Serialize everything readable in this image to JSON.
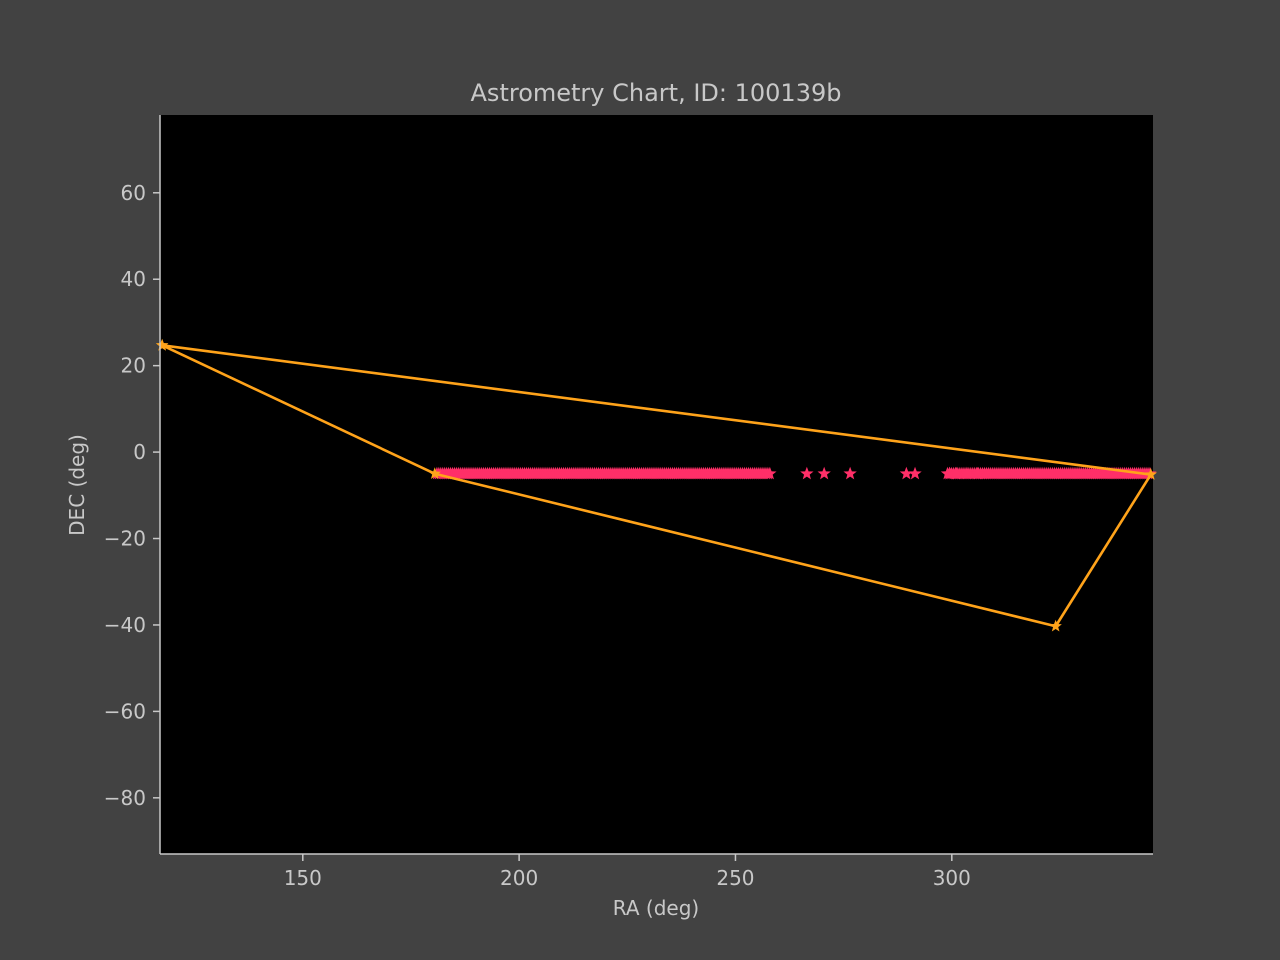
{
  "colors": {
    "background": "#424242",
    "plot_background": "#000000",
    "text": "#c8c8c8",
    "axis": "#c8c8c8",
    "scatter": "#ff2f68",
    "track": "#ffa31a"
  },
  "chart_data": {
    "type": "scatter",
    "title": "Astrometry Chart, ID: 100139b",
    "xlabel": "RA (deg)",
    "ylabel": "DEC (deg)",
    "xlim": [
      117,
      346.5
    ],
    "ylim": [
      -93,
      78
    ],
    "xticks": [
      150,
      200,
      250,
      300
    ],
    "xtick_labels": [
      "150",
      "200",
      "250",
      "300"
    ],
    "yticks": [
      60,
      40,
      20,
      0,
      -20,
      -40,
      -60,
      -80
    ],
    "ytick_labels": [
      "60",
      "40",
      "20",
      "0",
      "−20",
      "−40",
      "−60",
      "−80"
    ],
    "grid": false,
    "legend": "none",
    "series": [
      {
        "marker": "star",
        "dense_ranges": [
          [
            181,
            258
          ],
          [
            299,
            346
          ]
        ],
        "dense_step": 0.45,
        "dec": -5,
        "x": [
          266.5,
          270.5,
          276.5,
          289.5,
          291.5,
          299.5,
          301,
          303.5,
          306
        ],
        "y": [
          -5,
          -5,
          -5,
          -5,
          -5,
          -5,
          -5,
          -5,
          -5
        ]
      },
      {
        "marker": "star",
        "style": "line",
        "x": [
          117.5,
          180.5,
          324.0,
          346.0,
          117.5
        ],
        "y": [
          24.7,
          -5.0,
          -40.3,
          -5.2,
          24.7
        ]
      }
    ]
  }
}
